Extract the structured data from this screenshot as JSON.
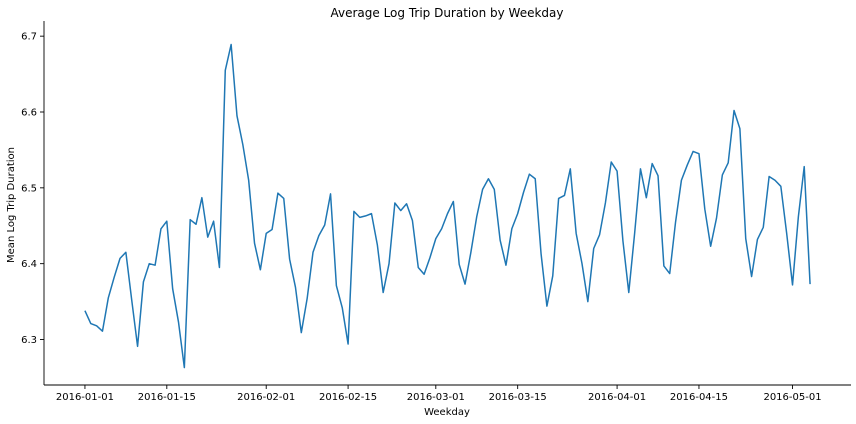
{
  "chart_data": {
    "type": "line",
    "title": "Average Log Trip Duration by Weekday",
    "xlabel": "Weekday",
    "ylabel": "Mean Log Trip Duration",
    "grid": false,
    "xlim": [
      "2015-12-25",
      "2016-05-11"
    ],
    "ylim": [
      6.24,
      6.72
    ],
    "xticks": [
      "2016-01-01",
      "2016-01-15",
      "2016-02-01",
      "2016-02-15",
      "2016-03-01",
      "2016-03-15",
      "2016-04-01",
      "2016-04-15",
      "2016-05-01"
    ],
    "yticks": [
      6.3,
      6.4,
      6.5,
      6.6,
      6.7
    ],
    "ytick_labels": [
      "6.3",
      "6.4",
      "6.5",
      "6.6",
      "6.7"
    ],
    "series": [
      {
        "color": "#1f77b4",
        "x_start": "2016-01-01",
        "x_step_days": 1,
        "values": [
          6.338,
          6.321,
          6.318,
          6.311,
          6.355,
          6.382,
          6.407,
          6.415,
          6.352,
          6.291,
          6.376,
          6.4,
          6.398,
          6.446,
          6.456,
          6.367,
          6.323,
          6.263,
          6.458,
          6.452,
          6.487,
          6.435,
          6.456,
          6.395,
          6.655,
          6.689,
          6.595,
          6.557,
          6.51,
          6.427,
          6.392,
          6.44,
          6.445,
          6.493,
          6.486,
          6.406,
          6.369,
          6.309,
          6.354,
          6.415,
          6.437,
          6.451,
          6.492,
          6.371,
          6.342,
          6.294,
          6.469,
          6.461,
          6.463,
          6.466,
          6.425,
          6.362,
          6.4,
          6.48,
          6.47,
          6.479,
          6.457,
          6.395,
          6.386,
          6.408,
          6.433,
          6.446,
          6.466,
          6.482,
          6.399,
          6.373,
          6.415,
          6.462,
          6.498,
          6.512,
          6.498,
          6.431,
          6.398,
          6.446,
          6.466,
          6.494,
          6.518,
          6.512,
          6.413,
          6.344,
          6.384,
          6.486,
          6.49,
          6.525,
          6.44,
          6.4,
          6.35,
          6.42,
          6.438,
          6.48,
          6.534,
          6.522,
          6.43,
          6.362,
          6.44,
          6.525,
          6.487,
          6.532,
          6.516,
          6.397,
          6.387,
          6.455,
          6.51,
          6.53,
          6.548,
          6.545,
          6.472,
          6.423,
          6.46,
          6.517,
          6.533,
          6.602,
          6.578,
          6.433,
          6.383,
          6.432,
          6.448,
          6.515,
          6.51,
          6.502,
          6.44,
          6.372,
          6.462,
          6.528,
          6.373
        ]
      }
    ]
  }
}
